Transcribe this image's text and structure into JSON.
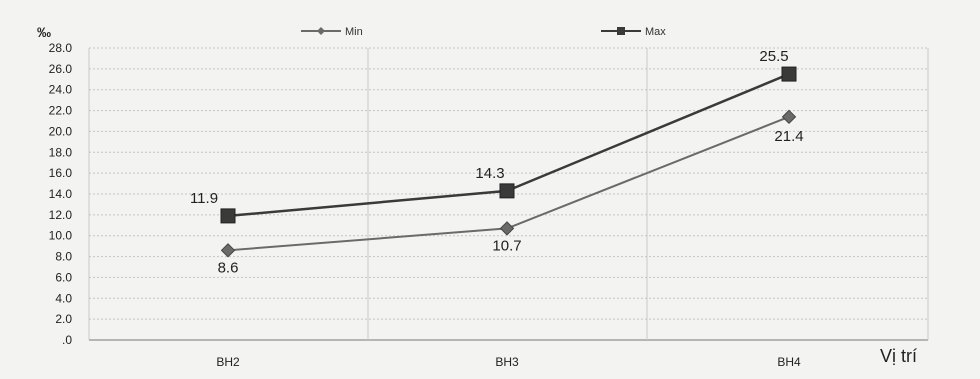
{
  "chart_data": {
    "type": "line",
    "ylabel": "‰",
    "xlabel": "Vị trí",
    "categories": [
      "BH2",
      "BH3",
      "BH4"
    ],
    "ylim": [
      0,
      28
    ],
    "ytick_labels": [
      ".0",
      "2.0",
      "4.0",
      "6.0",
      "8.0",
      "10.0",
      "12.0",
      "14.0",
      "16.0",
      "18.0",
      "20.0",
      "22.0",
      "24.0",
      "26.0",
      "28.0"
    ],
    "grid": true,
    "legend_position": "top",
    "series": [
      {
        "name": "Min",
        "values": [
          8.6,
          10.7,
          21.4
        ],
        "data_labels": [
          "8.6",
          "10.7",
          "21.4"
        ],
        "marker": "diamond",
        "color": "#6a6a6a"
      },
      {
        "name": "Max",
        "values": [
          11.9,
          14.3,
          25.5
        ],
        "data_labels": [
          "11.9",
          "14.3",
          "25.5"
        ],
        "marker": "square",
        "color": "#3a3a3a"
      }
    ]
  }
}
